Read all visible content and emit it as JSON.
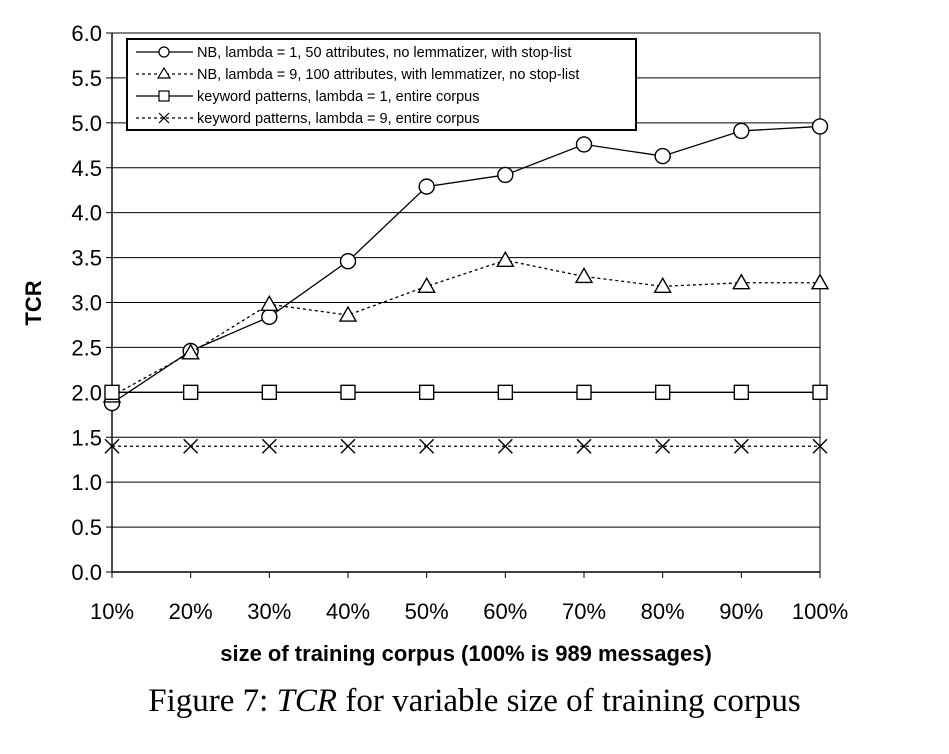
{
  "chart_data": {
    "type": "line",
    "title": "",
    "xlabel": "size of training corpus (100% is 989 messages)",
    "ylabel": "TCR",
    "categories": [
      "10%",
      "20%",
      "30%",
      "40%",
      "50%",
      "60%",
      "70%",
      "80%",
      "90%",
      "100%"
    ],
    "ylim": [
      0,
      6
    ],
    "yticks": [
      "0.0",
      "0.5",
      "1.0",
      "1.5",
      "2.0",
      "2.5",
      "3.0",
      "3.5",
      "4.0",
      "4.5",
      "5.0",
      "5.5",
      "6.0"
    ],
    "grid": "horizontal",
    "legend_position": "top-left",
    "series": [
      {
        "name": "NB, lambda = 1, 50 attributes, no lemmatizer, with stop-list",
        "marker": "circle",
        "line": "solid",
        "values": [
          1.88,
          2.46,
          2.84,
          3.46,
          4.29,
          4.42,
          4.76,
          4.63,
          4.91,
          4.96
        ]
      },
      {
        "name": "NB, lambda = 9, 100 attributes, with lemmatizer, no stop-list",
        "marker": "triangle",
        "line": "dotted",
        "values": [
          1.96,
          2.44,
          2.98,
          2.86,
          3.18,
          3.47,
          3.29,
          3.18,
          3.22,
          3.22
        ]
      },
      {
        "name": "keyword patterns, lambda = 1, entire corpus",
        "marker": "square",
        "line": "solid",
        "values": [
          2.0,
          2.0,
          2.0,
          2.0,
          2.0,
          2.0,
          2.0,
          2.0,
          2.0,
          2.0
        ]
      },
      {
        "name": "keyword patterns, lambda = 9, entire corpus",
        "marker": "cross",
        "line": "dotted",
        "values": [
          1.4,
          1.4,
          1.4,
          1.4,
          1.4,
          1.4,
          1.4,
          1.4,
          1.4,
          1.4
        ]
      }
    ]
  },
  "caption": {
    "prefix": "Figure 7:",
    "italic": "TCR",
    "suffix": "for variable size of training corpus"
  }
}
